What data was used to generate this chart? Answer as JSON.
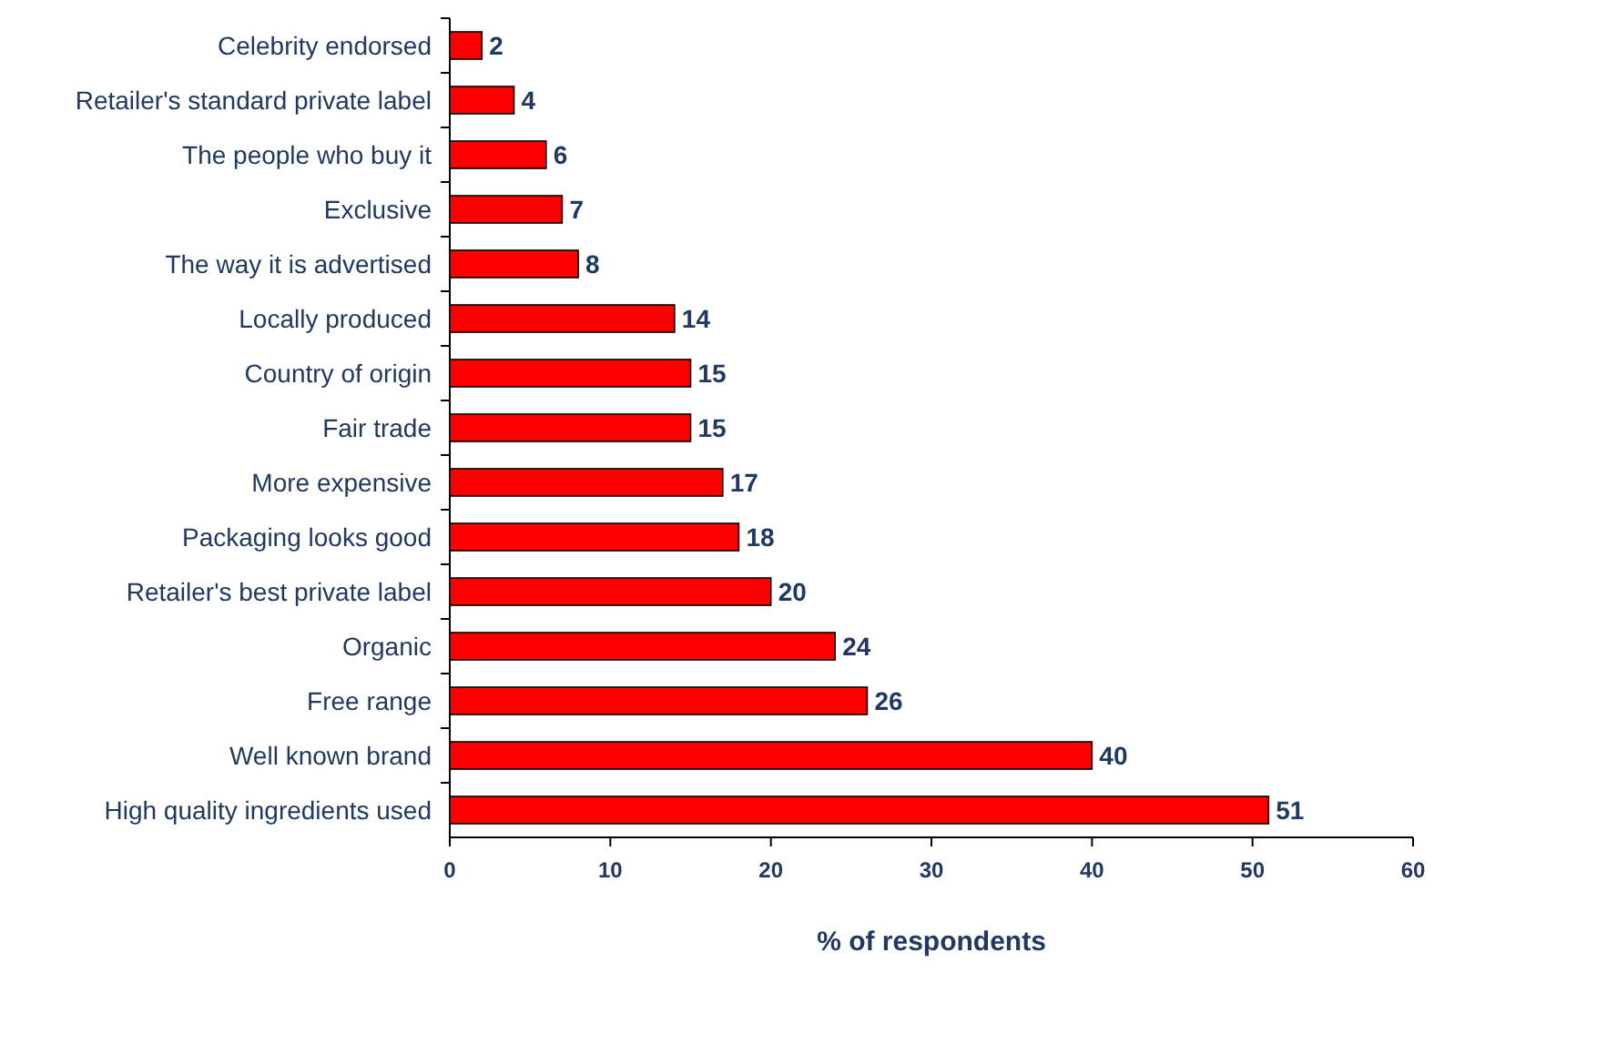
{
  "chart_data": {
    "type": "bar",
    "orientation": "horizontal",
    "xlabel": "% of respondents",
    "categories": [
      "Celebrity endorsed",
      "Retailer's standard private label",
      "The people who buy it",
      "Exclusive",
      "The way it is advertised",
      "Locally produced",
      "Country of origin",
      "Fair trade",
      "More expensive",
      "Packaging looks good",
      "Retailer's best private label",
      "Organic",
      "Free range",
      "Well known brand",
      "High quality ingredients used"
    ],
    "values": [
      2,
      4,
      6,
      7,
      8,
      14,
      15,
      15,
      17,
      18,
      20,
      24,
      26,
      40,
      51
    ],
    "color": "#ff0000",
    "xlim": [
      0,
      60
    ],
    "xticks": [
      0,
      10,
      20,
      30,
      40,
      50,
      60
    ],
    "data_labels": true,
    "grid": false
  }
}
